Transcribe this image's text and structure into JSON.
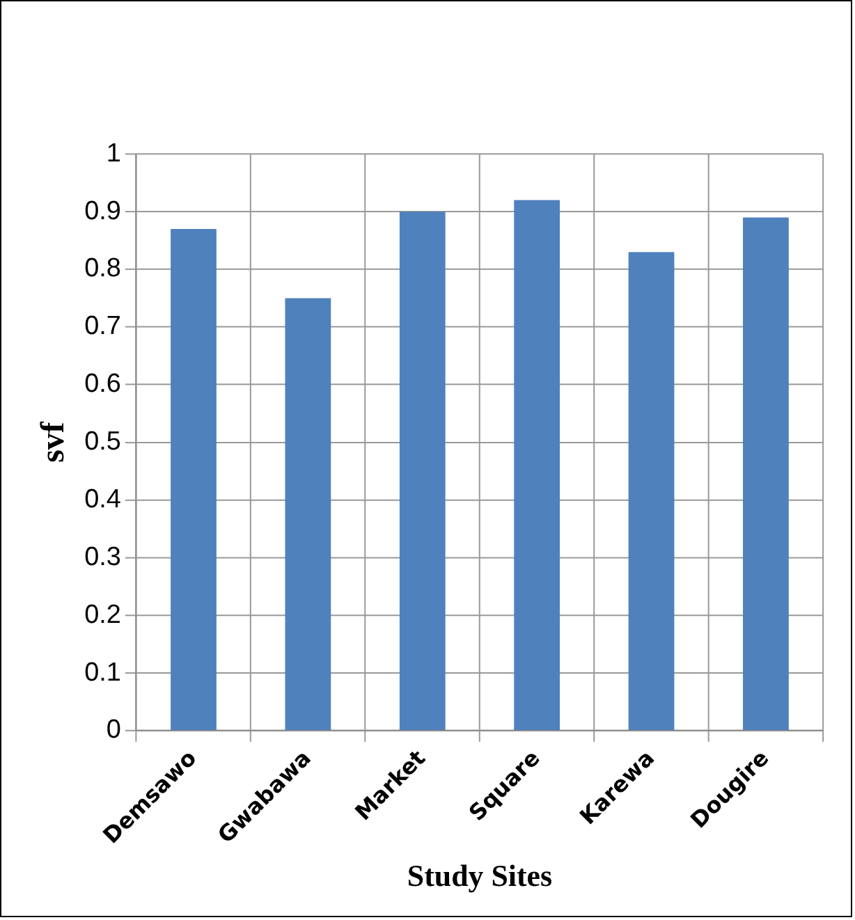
{
  "chart_data": {
    "type": "bar",
    "xlabel": "Study Sites",
    "ylabel": "svf",
    "categories": [
      "Demsawo",
      "Gwabawa",
      "Market",
      "Square",
      "Karewa",
      "Dougire"
    ],
    "values": [
      0.87,
      0.75,
      0.9,
      0.92,
      0.83,
      0.89
    ],
    "color": "#4f81bd",
    "ylim": [
      0,
      1
    ],
    "yticks": [
      0,
      0.1,
      0.2,
      0.3,
      0.4,
      0.5,
      0.6,
      0.7,
      0.8,
      0.9,
      1
    ],
    "grid": true,
    "legend": false
  }
}
